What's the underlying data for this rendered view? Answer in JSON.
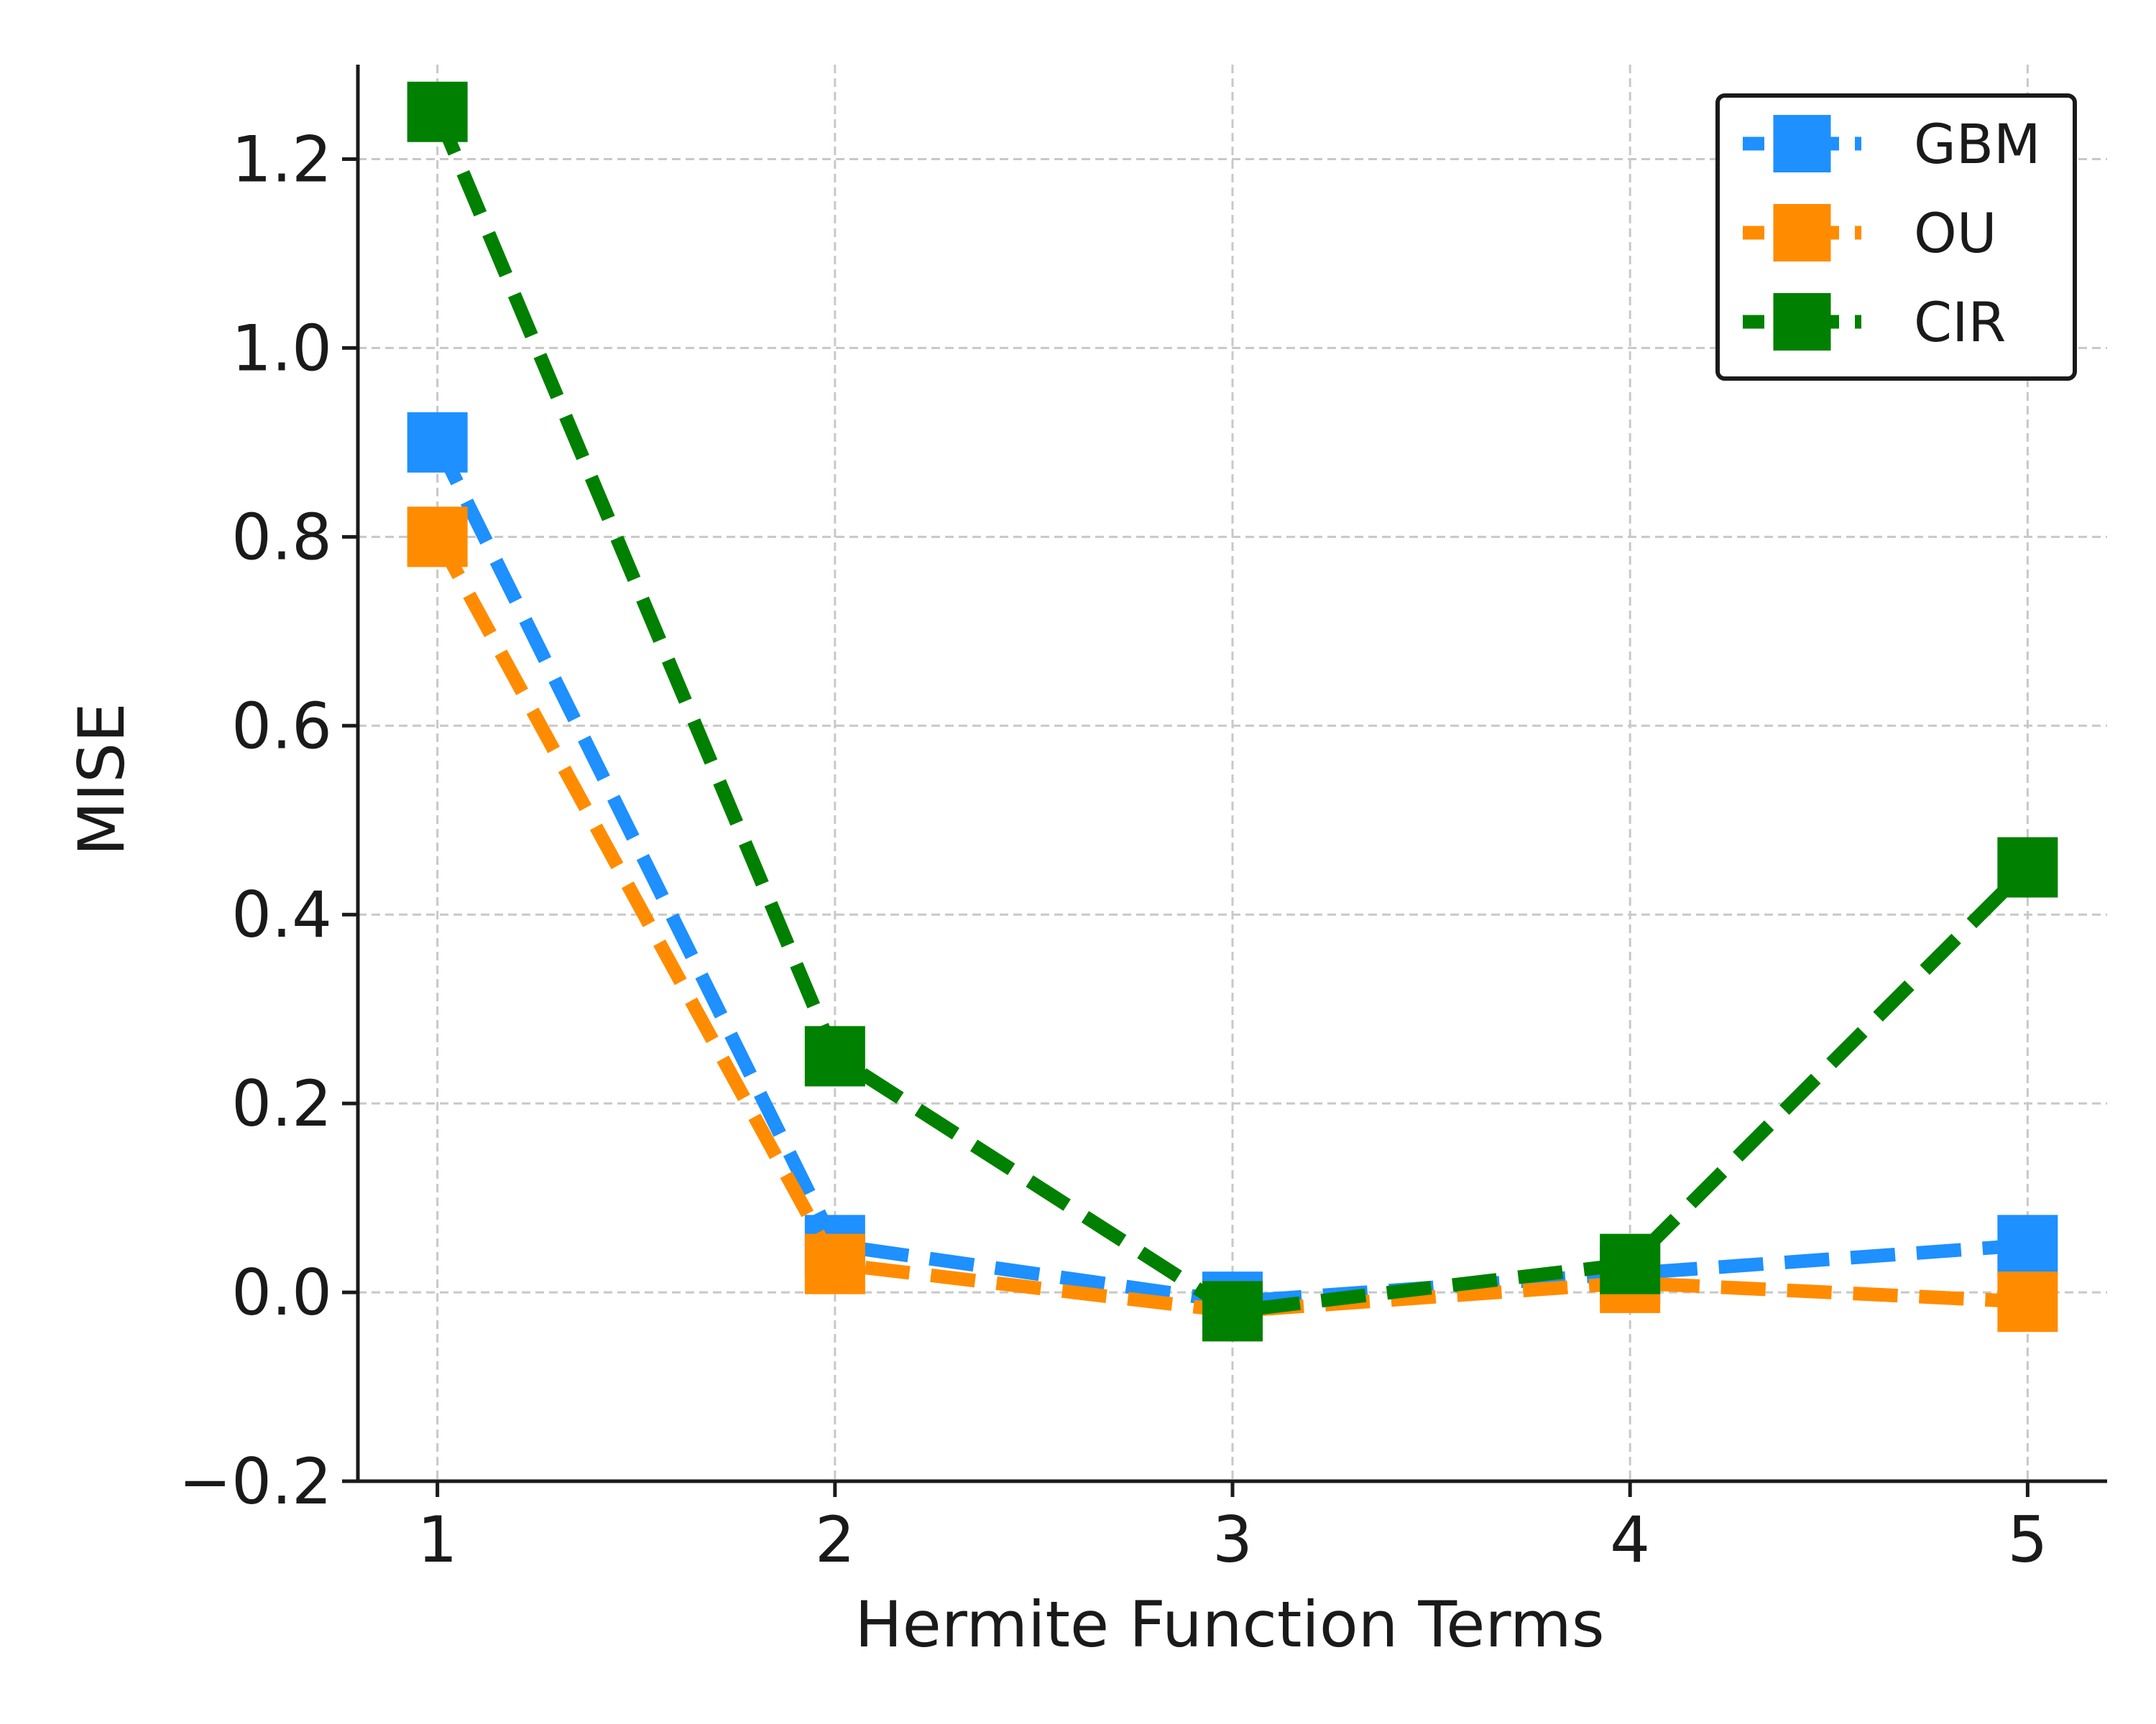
{
  "chart_data": {
    "type": "line",
    "title": "",
    "xlabel": "Hermite Function Terms",
    "ylabel": "MISE",
    "x": [
      1,
      2,
      3,
      4,
      5
    ],
    "x_tick_labels": [
      "1",
      "2",
      "3",
      "4",
      "5"
    ],
    "y_tick_values": [
      -0.2,
      0.0,
      0.2,
      0.4,
      0.6,
      0.8,
      1.0,
      1.2
    ],
    "y_tick_labels": [
      "−0.2",
      "0.0",
      "0.2",
      "0.4",
      "0.6",
      "0.8",
      "1.0",
      "1.2"
    ],
    "xlim": [
      0.8,
      5.2
    ],
    "ylim": [
      -0.2,
      1.3
    ],
    "grid": true,
    "legend_position": "top-right",
    "series": [
      {
        "name": "GBM",
        "color": "#1e90ff",
        "marker": "square",
        "line_style": "dashed",
        "values": [
          0.9,
          0.05,
          -0.01,
          0.02,
          0.05
        ]
      },
      {
        "name": "OU",
        "color": "#ff8c00",
        "marker": "square",
        "line_style": "dashed",
        "values": [
          0.8,
          0.03,
          -0.02,
          0.01,
          -0.01
        ]
      },
      {
        "name": "CIR",
        "color": "#008000",
        "marker": "square",
        "line_style": "dashed",
        "values": [
          1.25,
          0.25,
          -0.02,
          0.03,
          0.45
        ]
      }
    ]
  }
}
